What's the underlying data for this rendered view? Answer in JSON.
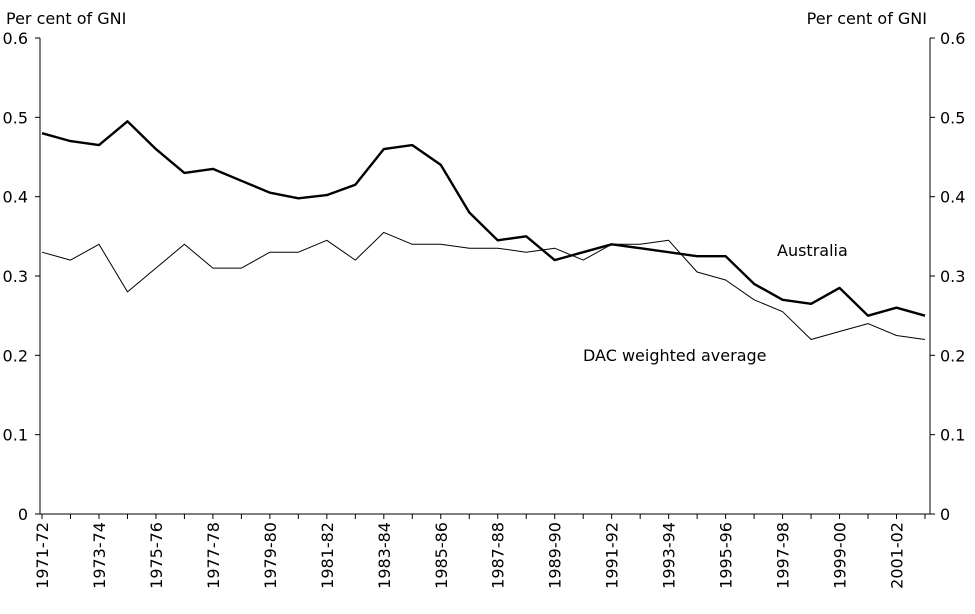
{
  "chart_data": {
    "type": "line",
    "ylabel": "Per cent of GNI",
    "y2label": "Per cent of GNI",
    "categories": [
      "1971-72",
      null,
      "1973-74",
      null,
      "1975-76",
      null,
      "1977-78",
      null,
      "1979-80",
      null,
      "1981-82",
      null,
      "1983-84",
      null,
      "1985-86",
      null,
      "1987-88",
      null,
      "1989-90",
      null,
      "1991-92",
      null,
      "1993-94",
      null,
      "1995-96",
      null,
      "1997-98",
      null,
      "1999-00",
      null,
      "2001-02",
      null
    ],
    "series": [
      {
        "name": "Australia",
        "color": "#000000",
        "values": [
          0.48,
          0.47,
          0.465,
          0.495,
          0.46,
          0.43,
          0.435,
          0.42,
          0.405,
          0.398,
          0.402,
          0.415,
          0.46,
          0.465,
          0.44,
          0.38,
          0.345,
          0.35,
          0.32,
          0.33,
          0.34,
          0.335,
          0.33,
          0.325,
          0.325,
          0.29,
          0.27,
          0.265,
          0.285,
          0.25,
          0.26,
          0.25
        ]
      },
      {
        "name": "DAC weighted average",
        "color": "#000000",
        "values": [
          0.33,
          0.32,
          0.34,
          0.28,
          0.31,
          0.34,
          0.31,
          0.31,
          0.33,
          0.33,
          0.345,
          0.32,
          0.355,
          0.34,
          0.34,
          0.335,
          0.335,
          0.33,
          0.335,
          0.32,
          0.34,
          0.34,
          0.345,
          0.305,
          0.295,
          0.27,
          0.255,
          0.22,
          0.23,
          0.24,
          0.225,
          0.22
        ]
      }
    ],
    "ylim": [
      0,
      0.6
    ],
    "yticks": [
      0,
      0.1,
      0.2,
      0.3,
      0.4,
      0.5,
      0.6
    ],
    "y2lim": [
      0,
      0.6
    ],
    "y2ticks": [
      0,
      0.1,
      0.2,
      0.3,
      0.4,
      0.5,
      0.6
    ],
    "grid": false
  }
}
